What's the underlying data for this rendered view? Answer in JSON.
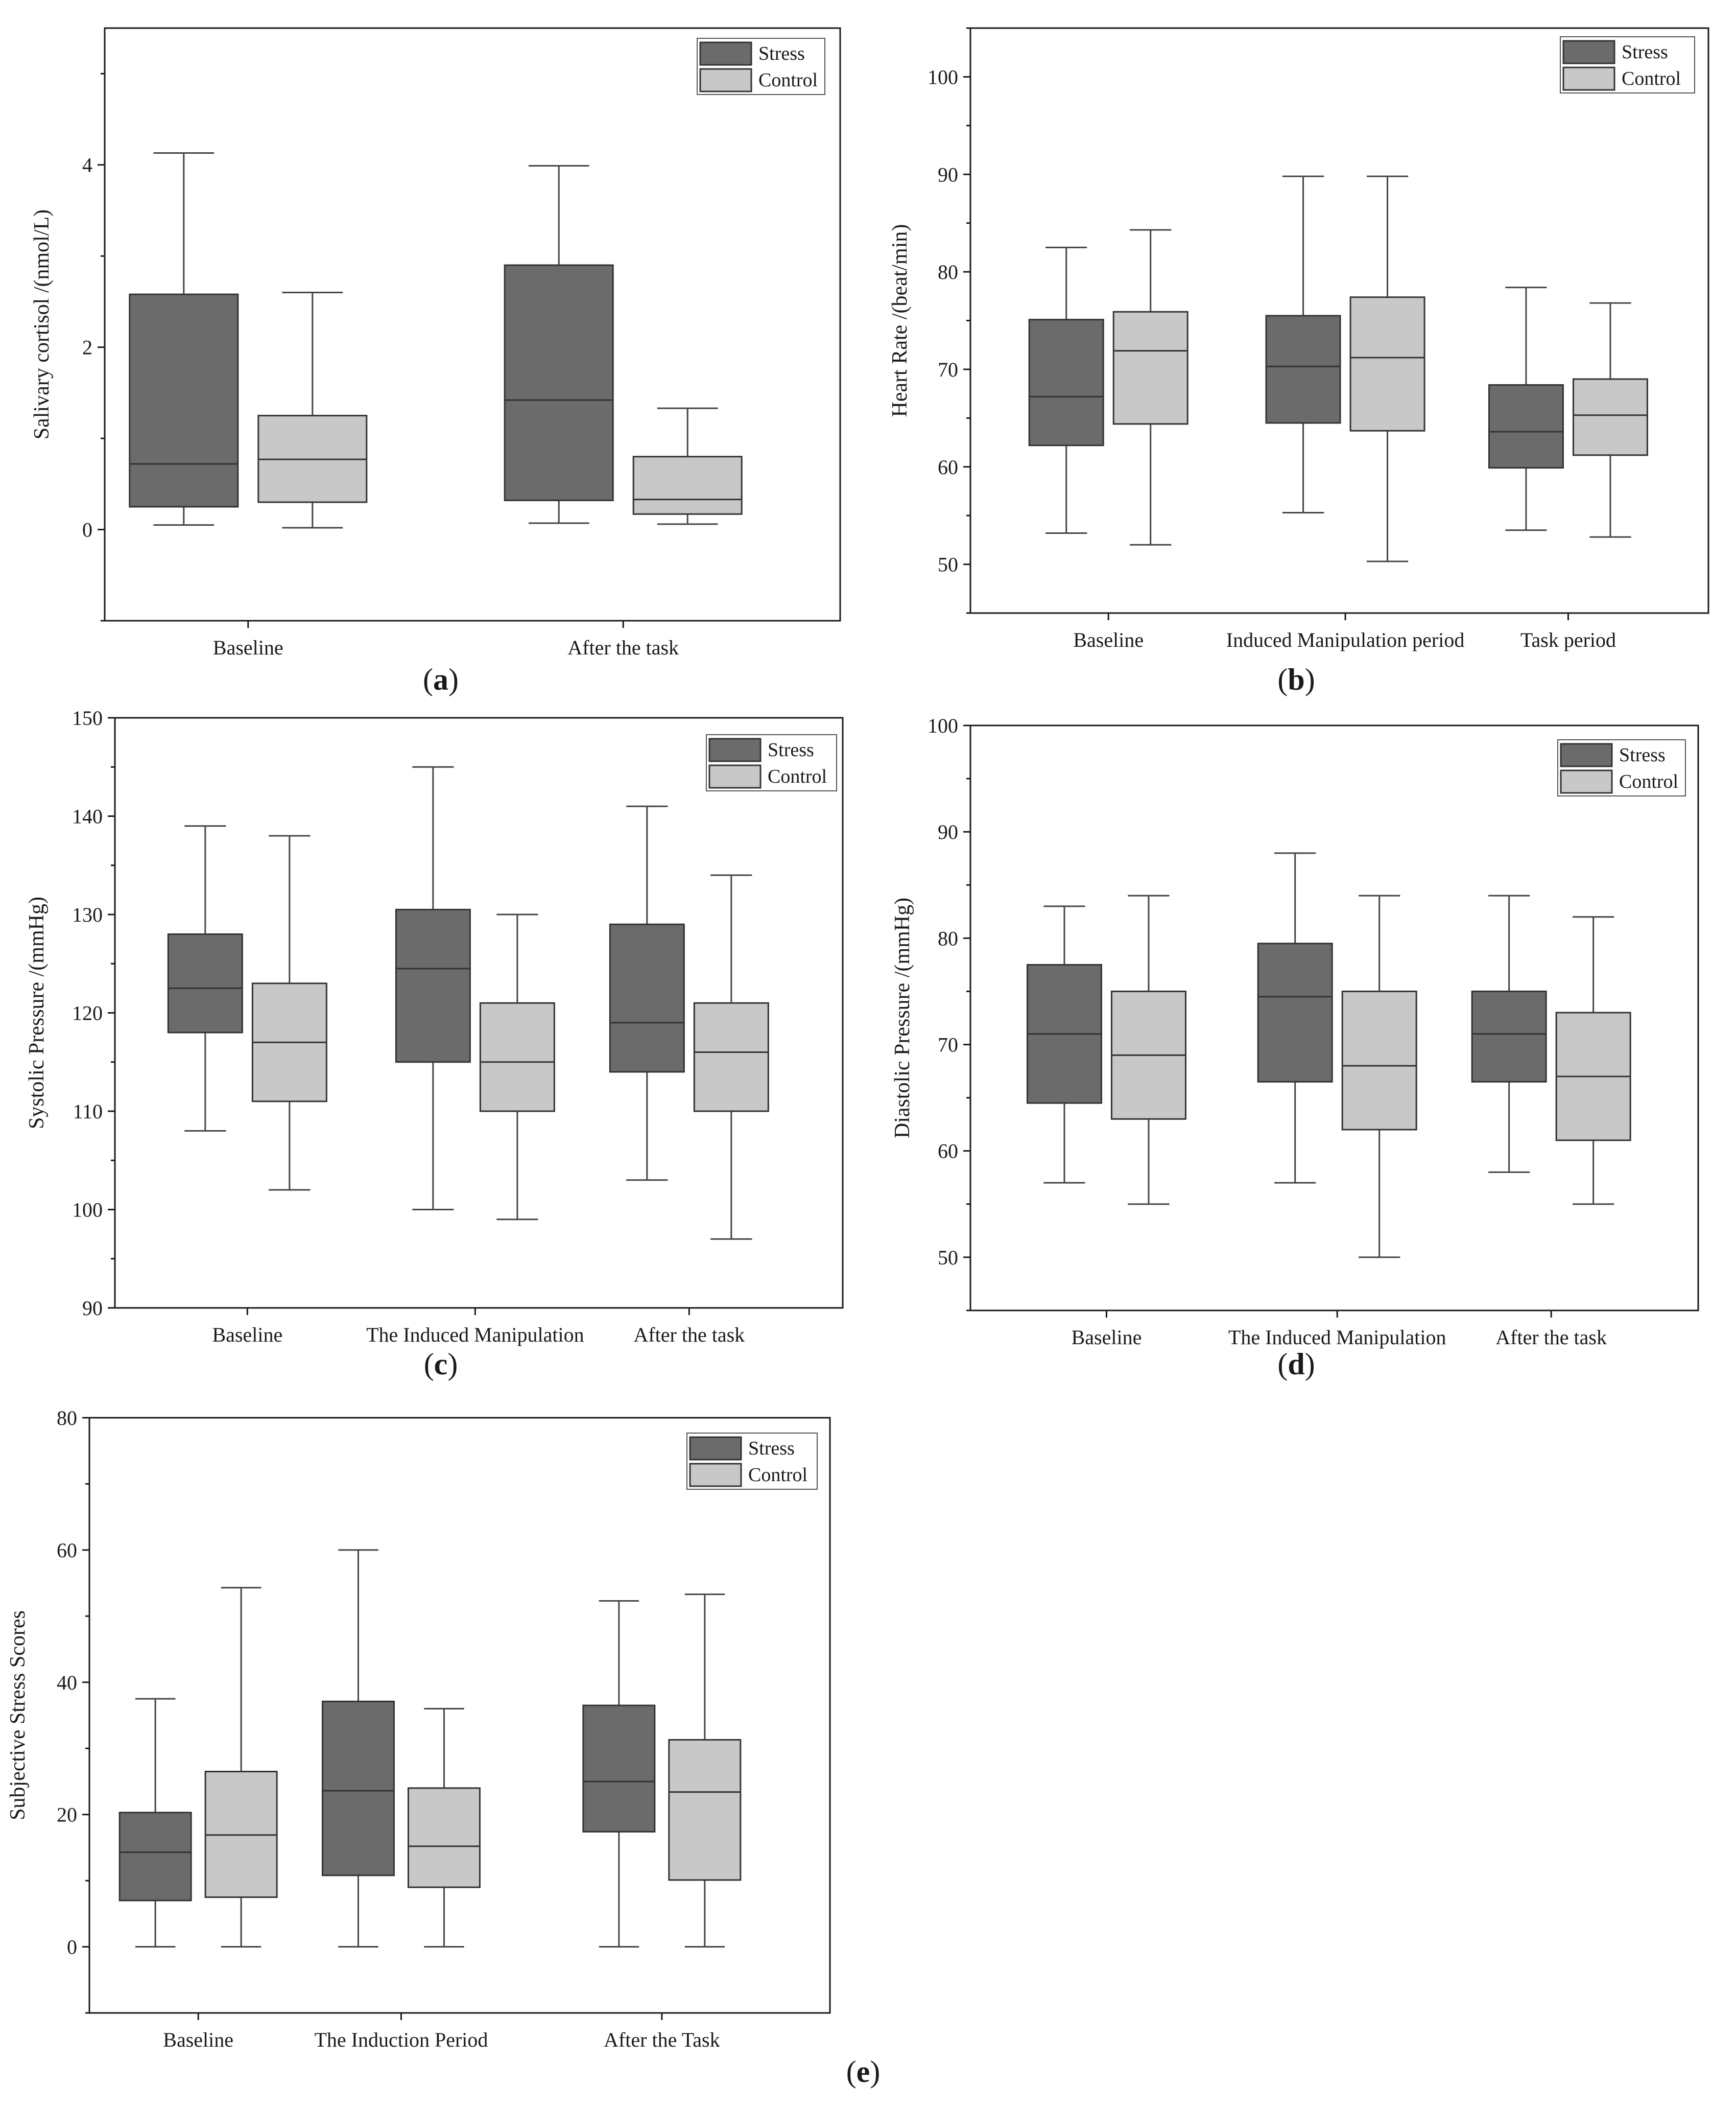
{
  "colors": {
    "stress": "#6b6b6b",
    "control": "#c8c8c8",
    "axis": "#1a1a1a"
  },
  "chart_data": [
    {
      "type": "box",
      "panel_label": "a",
      "ylabel": "Salivary  cortisol /(nmol/L)",
      "ylim": [
        -1,
        5.5
      ],
      "yticks": [
        0,
        2,
        4
      ],
      "categories": [
        "Baseline",
        "After the task"
      ],
      "legend": [
        "Stress",
        "Control"
      ],
      "series": [
        {
          "name": "Stress",
          "boxes": [
            {
              "min": 0.05,
              "q1": 0.25,
              "median": 0.72,
              "q3": 2.58,
              "max": 4.13
            },
            {
              "min": 0.07,
              "q1": 0.32,
              "median": 1.42,
              "q3": 2.9,
              "max": 3.99
            }
          ]
        },
        {
          "name": "Control",
          "boxes": [
            {
              "min": 0.02,
              "q1": 0.3,
              "median": 0.77,
              "q3": 1.25,
              "max": 2.6
            },
            {
              "min": 0.06,
              "q1": 0.17,
              "median": 0.33,
              "q3": 0.8,
              "max": 1.33
            }
          ]
        }
      ]
    },
    {
      "type": "box",
      "panel_label": "b",
      "ylabel": "Heart  Rate /(beat/min)",
      "ylim": [
        45,
        105
      ],
      "yticks": [
        50,
        60,
        70,
        80,
        90,
        100
      ],
      "categories": [
        "Baseline",
        "Induced Manipulation period",
        "Task period"
      ],
      "legend": [
        "Stress",
        "Control"
      ],
      "series": [
        {
          "name": "Stress",
          "boxes": [
            {
              "min": 53.2,
              "q1": 62.2,
              "median": 67.2,
              "q3": 75.1,
              "max": 82.5
            },
            {
              "min": 55.3,
              "q1": 64.5,
              "median": 70.3,
              "q3": 75.5,
              "max": 89.8
            },
            {
              "min": 53.5,
              "q1": 59.9,
              "median": 63.6,
              "q3": 68.4,
              "max": 78.4
            }
          ]
        },
        {
          "name": "Control",
          "boxes": [
            {
              "min": 52.0,
              "q1": 64.4,
              "median": 71.9,
              "q3": 75.9,
              "max": 84.3
            },
            {
              "min": 50.3,
              "q1": 63.7,
              "median": 71.2,
              "q3": 77.4,
              "max": 89.8
            },
            {
              "min": 52.8,
              "q1": 61.2,
              "median": 65.3,
              "q3": 69.0,
              "max": 76.8
            }
          ]
        }
      ]
    },
    {
      "type": "box",
      "panel_label": "c",
      "ylabel": "Systolic  Pressure /(mmHg)",
      "ylim": [
        90,
        150
      ],
      "yticks": [
        90,
        100,
        110,
        120,
        130,
        140,
        150
      ],
      "categories": [
        "Baseline",
        "The Induced Manipulation",
        "After the task"
      ],
      "legend": [
        "Stress",
        "Control"
      ],
      "series": [
        {
          "name": "Stress",
          "boxes": [
            {
              "min": 108,
              "q1": 118,
              "median": 122.5,
              "q3": 128,
              "max": 139
            },
            {
              "min": 100,
              "q1": 115,
              "median": 124.5,
              "q3": 130.5,
              "max": 145
            },
            {
              "min": 103,
              "q1": 114,
              "median": 119,
              "q3": 129,
              "max": 141
            }
          ]
        },
        {
          "name": "Control",
          "boxes": [
            {
              "min": 102,
              "q1": 111,
              "median": 117,
              "q3": 123,
              "max": 138
            },
            {
              "min": 99,
              "q1": 110,
              "median": 115,
              "q3": 121,
              "max": 130
            },
            {
              "min": 97,
              "q1": 110,
              "median": 116,
              "q3": 121,
              "max": 134
            }
          ]
        }
      ]
    },
    {
      "type": "box",
      "panel_label": "d",
      "ylabel": "Diastolic  Pressure /(mmHg)",
      "ylim": [
        45,
        100
      ],
      "yticks": [
        50,
        60,
        70,
        80,
        90,
        100
      ],
      "categories": [
        "Baseline",
        "The Induced Manipulation",
        "After the task"
      ],
      "legend": [
        "Stress",
        "Control"
      ],
      "series": [
        {
          "name": "Stress",
          "boxes": [
            {
              "min": 57,
              "q1": 64.5,
              "median": 71,
              "q3": 77.5,
              "max": 83
            },
            {
              "min": 57,
              "q1": 66.5,
              "median": 74.5,
              "q3": 79.5,
              "max": 88
            },
            {
              "min": 58,
              "q1": 66.5,
              "median": 71,
              "q3": 75,
              "max": 84
            }
          ]
        },
        {
          "name": "Control",
          "boxes": [
            {
              "min": 55,
              "q1": 63,
              "median": 69,
              "q3": 75,
              "max": 84
            },
            {
              "min": 50,
              "q1": 62,
              "median": 68,
              "q3": 75,
              "max": 84
            },
            {
              "min": 55,
              "q1": 61,
              "median": 67,
              "q3": 73,
              "max": 82
            }
          ]
        }
      ]
    },
    {
      "type": "box",
      "panel_label": "e",
      "ylabel": "Subjective  Stress  Scores",
      "ylim": [
        -10,
        80
      ],
      "yticks": [
        0,
        20,
        40,
        60,
        80
      ],
      "categories": [
        "Baseline",
        "The Induction Period",
        "After the Task"
      ],
      "legend": [
        "Stress",
        "Control"
      ],
      "series": [
        {
          "name": "Stress",
          "boxes": [
            {
              "min": 0,
              "q1": 7,
              "median": 14.3,
              "q3": 20.3,
              "max": 37.5
            },
            {
              "min": 0,
              "q1": 10.8,
              "median": 23.6,
              "q3": 37.1,
              "max": 60
            },
            {
              "min": 0,
              "q1": 17.4,
              "median": 25,
              "q3": 36.5,
              "max": 52.3
            }
          ]
        },
        {
          "name": "Control",
          "boxes": [
            {
              "min": 0,
              "q1": 7.5,
              "median": 16.9,
              "q3": 26.5,
              "max": 54.3
            },
            {
              "min": 0,
              "q1": 9,
              "median": 15.2,
              "q3": 24,
              "max": 36
            },
            {
              "min": 0,
              "q1": 10.1,
              "median": 23.4,
              "q3": 31.3,
              "max": 53.3
            }
          ]
        }
      ]
    }
  ]
}
